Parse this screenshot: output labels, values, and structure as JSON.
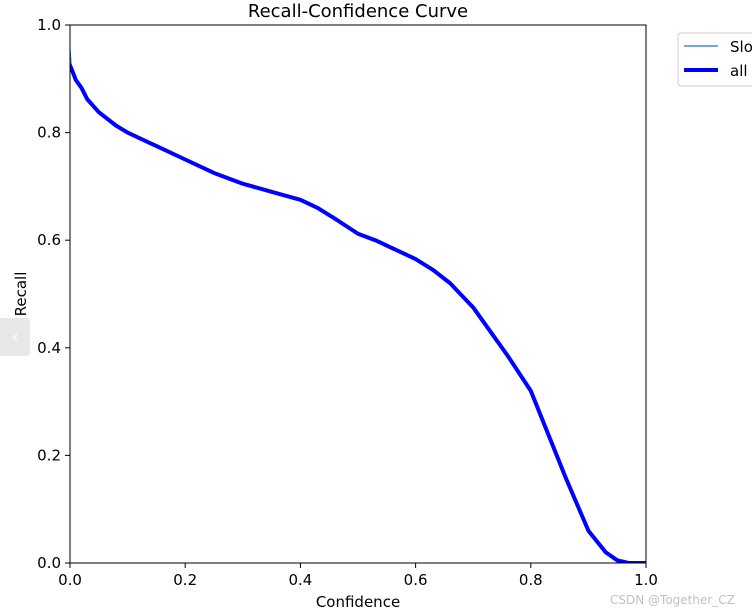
{
  "chart_data": {
    "type": "line",
    "title": "Recall-Confidence Curve",
    "xlabel": "Confidence",
    "ylabel": "Recall",
    "xlim": [
      0,
      1
    ],
    "ylim": [
      0,
      1
    ],
    "xticks": [
      "0.0",
      "0.2",
      "0.4",
      "0.6",
      "0.8",
      "1.0"
    ],
    "yticks": [
      "0.0",
      "0.2",
      "0.4",
      "0.6",
      "0.8",
      "1.0"
    ],
    "grid": false,
    "legend_position": "outside-top-right",
    "series": [
      {
        "name": "Slo",
        "color": "#1f77b4",
        "x": [
          0.0,
          0.002,
          0.005,
          0.01,
          0.02,
          0.03,
          0.05,
          0.08,
          0.1,
          0.13,
          0.16,
          0.2,
          0.25,
          0.3,
          0.35,
          0.4,
          0.43,
          0.46,
          0.5,
          0.53,
          0.56,
          0.6,
          0.63,
          0.66,
          0.7,
          0.73,
          0.76,
          0.8,
          0.83,
          0.86,
          0.9,
          0.93,
          0.95,
          0.97,
          0.98,
          1.0
        ],
        "y": [
          0.955,
          0.925,
          0.915,
          0.9,
          0.885,
          0.865,
          0.84,
          0.815,
          0.8,
          0.785,
          0.77,
          0.75,
          0.725,
          0.705,
          0.69,
          0.675,
          0.66,
          0.64,
          0.612,
          0.6,
          0.585,
          0.565,
          0.545,
          0.52,
          0.475,
          0.43,
          0.385,
          0.32,
          0.24,
          0.16,
          0.06,
          0.02,
          0.005,
          0.0,
          0.0,
          0.0
        ]
      },
      {
        "name": "all",
        "color": "#0000ff",
        "x": [
          0.0,
          0.002,
          0.005,
          0.01,
          0.02,
          0.03,
          0.05,
          0.08,
          0.1,
          0.13,
          0.16,
          0.2,
          0.25,
          0.3,
          0.35,
          0.4,
          0.43,
          0.46,
          0.5,
          0.53,
          0.56,
          0.6,
          0.63,
          0.66,
          0.7,
          0.73,
          0.76,
          0.8,
          0.83,
          0.86,
          0.9,
          0.93,
          0.95,
          0.97,
          0.98,
          1.0
        ],
        "y": [
          0.925,
          0.92,
          0.912,
          0.898,
          0.883,
          0.862,
          0.838,
          0.813,
          0.8,
          0.785,
          0.77,
          0.75,
          0.725,
          0.705,
          0.69,
          0.675,
          0.66,
          0.64,
          0.612,
          0.6,
          0.585,
          0.565,
          0.545,
          0.52,
          0.475,
          0.43,
          0.385,
          0.32,
          0.24,
          0.16,
          0.06,
          0.02,
          0.005,
          0.0,
          0.0,
          0.0
        ]
      }
    ]
  },
  "watermark": "CSDN @Together_CZ",
  "side_tab_icon": "chevron-left-icon",
  "side_tab_glyph": "‹"
}
